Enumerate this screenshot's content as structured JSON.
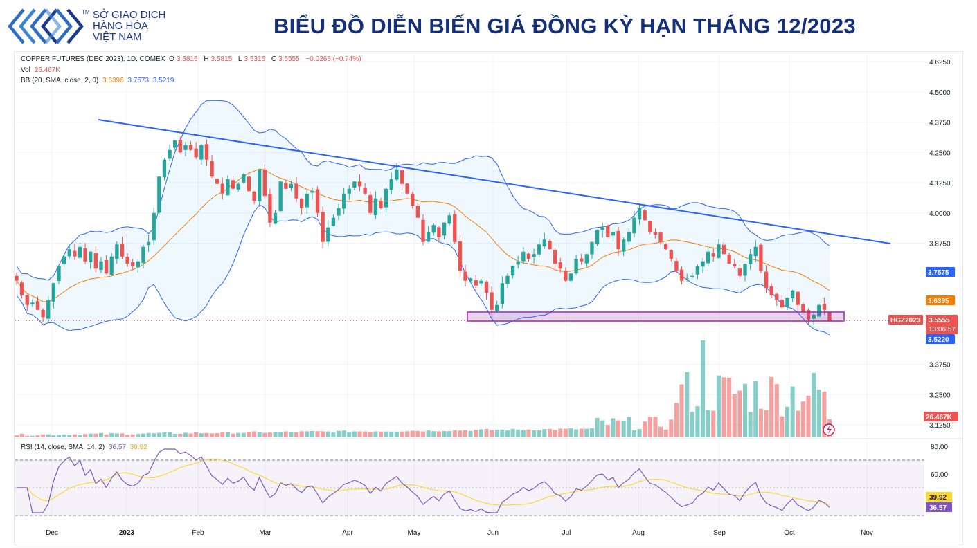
{
  "header": {
    "logo_line1": "SỞ GIAO DỊCH",
    "logo_line2": "HÀNG HÓA",
    "logo_line3": "VIỆT NAM",
    "logo_tm": "TM",
    "title": "BIỂU ĐỒ DIỄN BIẾN GIÁ ĐỒNG KỲ HẠN THÁNG 12/2023"
  },
  "legend": {
    "symbol": "COPPER FUTURES (DEC 2023), 1D, COMEX",
    "o_label": "O",
    "o_value": "3.5815",
    "h_label": "H",
    "h_value": "3.5815",
    "l_label": "L",
    "l_value": "3.5315",
    "c_label": "C",
    "c_value": "3.5555",
    "change": "−0.0265 (−0.74%)",
    "vol_label": "Vol",
    "vol_value": "26.467K",
    "bb_label": "BB (20, SMA, close, 2, 0)",
    "bb_basis": "3.6396",
    "bb_upper": "3.7573",
    "bb_lower": "3.5219",
    "rsi_label": "RSI (14, close, SMA, 14, 2)",
    "rsi_value": "36.57",
    "rsi_ma": "39.92"
  },
  "colors": {
    "up": "#26a69a",
    "down": "#ef5350",
    "bb_band": "#2962ff",
    "bb_basis": "#f57c00",
    "trendline": "#2962ff",
    "support_box": "#9c27b0",
    "rsi": "#7e57c2",
    "rsi_ma": "#fdd835",
    "title": "#15307a",
    "logo": "#1b3a8c"
  },
  "chart_data": {
    "type": "candlestick",
    "price_ticks": [
      "4.6250",
      "4.5000",
      "4.3750",
      "4.2500",
      "4.1250",
      "4.0000",
      "3.8750",
      "3.3750",
      "3.2500",
      "3.1250"
    ],
    "time_labels": [
      "Dec",
      "2023",
      "Feb",
      "Mar",
      "Apr",
      "May",
      "Jun",
      "Jul",
      "Aug",
      "Sep",
      "Oct",
      "Nov"
    ],
    "price_badges": {
      "bb_upper": "3.7575",
      "bb_basis": "3.6395",
      "symbol": "HGZ2023",
      "last": "3.5555",
      "countdown": "13:06:57",
      "bb_lower": "3.5220",
      "volume": "26.467K"
    },
    "rsi_ticks": [
      "80.00",
      "60.00"
    ],
    "rsi_badges": {
      "rsi_ma": "39.92",
      "rsi": "36.57"
    },
    "rsi_bounds": [
      70,
      30
    ],
    "close_series": [
      3.72,
      3.66,
      3.62,
      3.63,
      3.6,
      3.57,
      3.64,
      3.71,
      3.78,
      3.82,
      3.85,
      3.82,
      3.86,
      3.8,
      3.84,
      3.77,
      3.8,
      3.75,
      3.82,
      3.87,
      3.82,
      3.79,
      3.78,
      3.8,
      3.86,
      3.88,
      4.0,
      4.15,
      4.22,
      4.26,
      4.3,
      4.25,
      4.28,
      4.26,
      4.23,
      4.28,
      4.22,
      4.15,
      4.12,
      4.08,
      4.14,
      4.1,
      4.12,
      4.16,
      4.09,
      4.05,
      4.18,
      4.07,
      3.96,
      4.0,
      4.13,
      4.1,
      4.12,
      4.06,
      4.02,
      4.08,
      4.09,
      4.0,
      3.88,
      3.94,
      3.98,
      4.02,
      4.08,
      4.1,
      4.13,
      4.11,
      4.08,
      4.0,
      4.06,
      4.02,
      4.1,
      4.14,
      4.18,
      4.12,
      4.08,
      4.03,
      3.98,
      3.88,
      3.92,
      3.95,
      3.9,
      3.96,
      3.99,
      3.88,
      3.76,
      3.72,
      3.73,
      3.7,
      3.72,
      3.67,
      3.6,
      3.62,
      3.71,
      3.74,
      3.78,
      3.8,
      3.84,
      3.81,
      3.83,
      3.87,
      3.89,
      3.85,
      3.79,
      3.77,
      3.72,
      3.75,
      3.81,
      3.8,
      3.83,
      3.88,
      3.93,
      3.94,
      3.9,
      3.92,
      3.85,
      3.89,
      3.92,
      3.98,
      4.02,
      3.97,
      3.92,
      3.91,
      3.88,
      3.85,
      3.81,
      3.76,
      3.72,
      3.73,
      3.74,
      3.78,
      3.8,
      3.84,
      3.82,
      3.87,
      3.83,
      3.79,
      3.78,
      3.74,
      3.79,
      3.83,
      3.86,
      3.76,
      3.69,
      3.66,
      3.64,
      3.61,
      3.65,
      3.68,
      3.62,
      3.59,
      3.56,
      3.58,
      3.62,
      3.6,
      3.555
    ],
    "volume_scale_note": ""
  }
}
